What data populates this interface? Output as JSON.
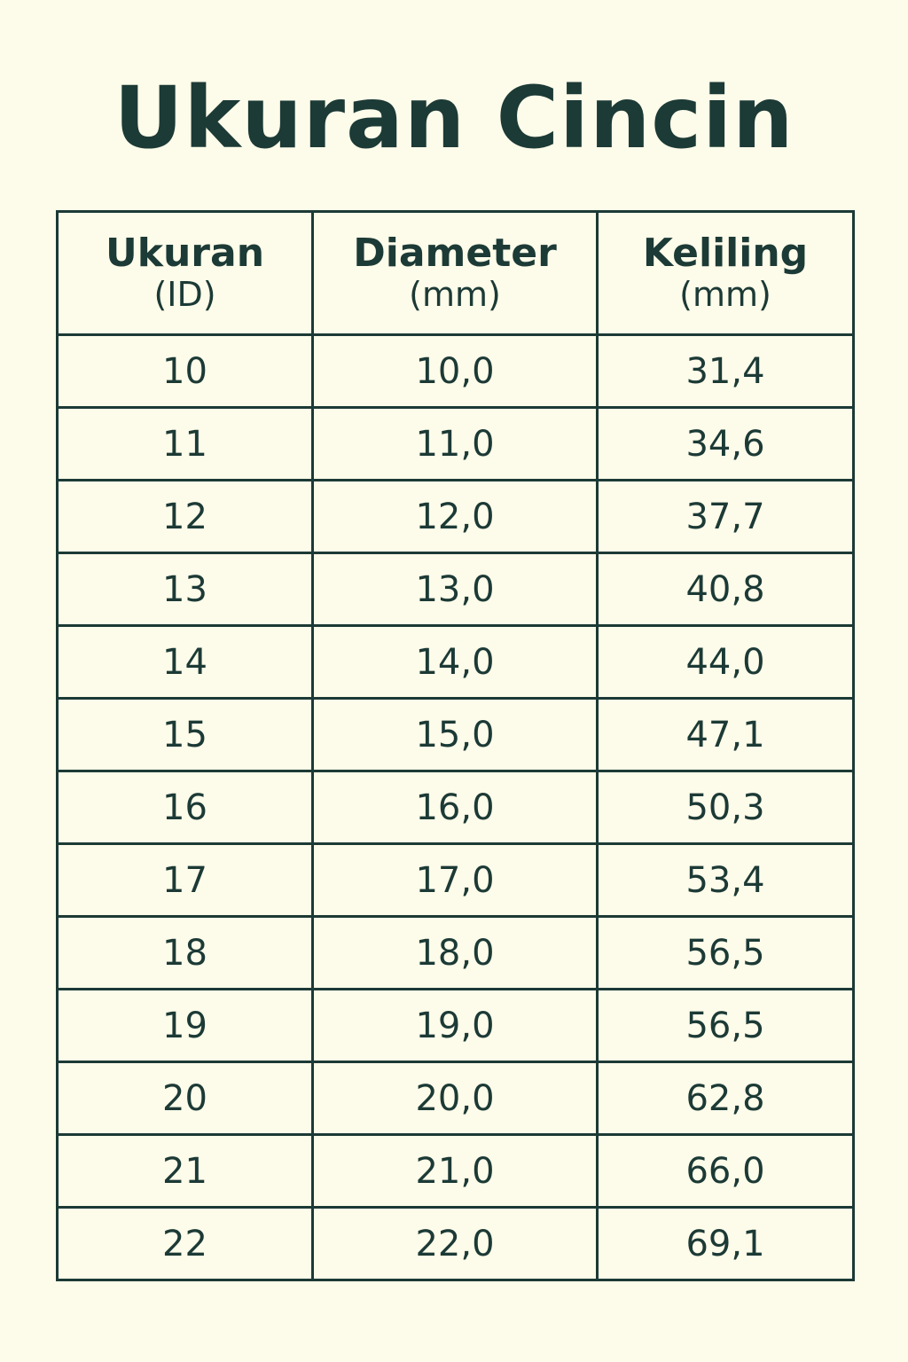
{
  "title": "Ukuran Cincin",
  "table": {
    "headers": [
      {
        "main": "Ukuran",
        "unit": "(ID)"
      },
      {
        "main": "Diameter",
        "unit": "(mm)"
      },
      {
        "main": "Keliling",
        "unit": "(mm)"
      }
    ],
    "rows": [
      [
        "10",
        "10,0",
        "31,4"
      ],
      [
        "11",
        "11,0",
        "34,6"
      ],
      [
        "12",
        "12,0",
        "37,7"
      ],
      [
        "13",
        "13,0",
        "40,8"
      ],
      [
        "14",
        "14,0",
        "44,0"
      ],
      [
        "15",
        "15,0",
        "47,1"
      ],
      [
        "16",
        "16,0",
        "50,3"
      ],
      [
        "17",
        "17,0",
        "53,4"
      ],
      [
        "18",
        "18,0",
        "56,5"
      ],
      [
        "19",
        "19,0",
        "56,5"
      ],
      [
        "20",
        "20,0",
        "62,8"
      ],
      [
        "21",
        "21,0",
        "66,0"
      ],
      [
        "22",
        "22,0",
        "69,1"
      ]
    ]
  }
}
